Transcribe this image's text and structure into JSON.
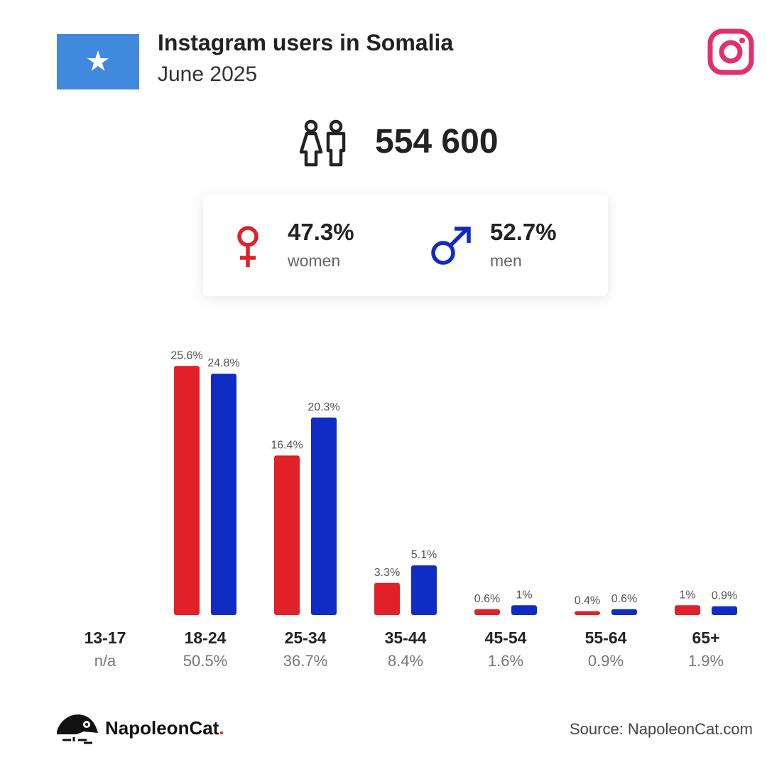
{
  "header": {
    "title": "Instagram users in Somalia",
    "subtitle": "June 2025"
  },
  "total": {
    "value": "554 600"
  },
  "gender": {
    "women": {
      "value": "47.3%",
      "label": "women"
    },
    "men": {
      "value": "52.7%",
      "label": "men"
    }
  },
  "chart_data": {
    "type": "bar",
    "categories": [
      "13-17",
      "18-24",
      "25-34",
      "35-44",
      "45-54",
      "55-64",
      "65+"
    ],
    "category_totals": [
      "n/a",
      "50.5%",
      "36.7%",
      "8.4%",
      "1.6%",
      "0.9%",
      "1.9%"
    ],
    "series": [
      {
        "color": "#e1202a",
        "values": [
          null,
          25.6,
          16.4,
          3.3,
          0.6,
          0.4,
          1.0
        ],
        "labels": [
          "",
          "25.6%",
          "16.4%",
          "3.3%",
          "0.6%",
          "0.4%",
          "1%"
        ]
      },
      {
        "color": "#0f2cc4",
        "values": [
          null,
          24.8,
          20.3,
          5.1,
          1.0,
          0.6,
          0.9
        ],
        "labels": [
          "",
          "24.8%",
          "20.3%",
          "5.1%",
          "1%",
          "0.6%",
          "0.9%"
        ]
      }
    ]
  },
  "footer": {
    "brand": "NapoleonCat",
    "brand_dot": ".",
    "source": "Source: NapoleonCat.com"
  },
  "colors": {
    "women": "#e1202a",
    "men": "#0f2cc4",
    "flag": "#4189dd",
    "instagram": "#e1306c"
  },
  "icons": [
    "somalia-flag",
    "instagram-icon",
    "people-icon",
    "female-symbol-icon",
    "male-symbol-icon",
    "napoleoncat-logo-icon"
  ]
}
